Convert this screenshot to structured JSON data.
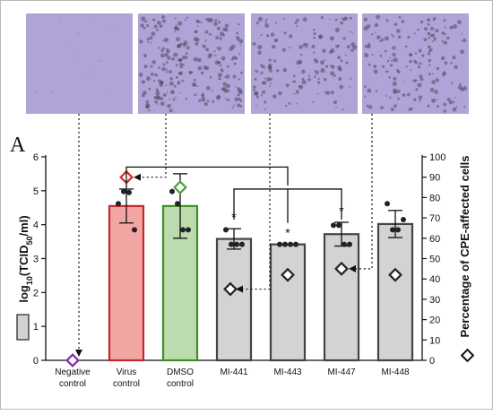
{
  "panel_letter": "A",
  "chart_data": {
    "type": "bar",
    "categories": [
      "Negative\ncontrol",
      "Virus\ncontrol",
      "DMSO\ncontrol",
      "MI-441",
      "MI-443",
      "MI-447",
      "MI-448"
    ],
    "ylabel": "log10(TCID50/ml)",
    "ylabel_parts": {
      "base": "log",
      "sub1": "10",
      "mid": "(TCID",
      "sub2": "50",
      "tail": "/ml)"
    },
    "y2label": "Percentage of CPE-affected cells",
    "ylim": [
      0,
      6
    ],
    "y2lim": [
      0,
      100
    ],
    "yticks": [
      0,
      1,
      2,
      3,
      4,
      5,
      6
    ],
    "y2ticks": [
      0,
      10,
      20,
      30,
      40,
      50,
      60,
      70,
      80,
      90,
      100
    ],
    "bar_values": [
      0,
      4.55,
      4.55,
      3.58,
      3.42,
      3.72,
      4.02
    ],
    "error": [
      0,
      0.5,
      0.95,
      0.3,
      0.0,
      0.35,
      0.4
    ],
    "replicates": [
      [],
      [
        4.62,
        4.98,
        4.95,
        3.85
      ],
      [
        4.98,
        4.62,
        3.85,
        3.85
      ],
      [
        3.85,
        3.42,
        3.42,
        3.42
      ],
      [
        3.42,
        3.42,
        3.42,
        3.42
      ],
      [
        3.98,
        3.98,
        3.42,
        3.42
      ],
      [
        4.62,
        3.85,
        3.85,
        4.15
      ]
    ],
    "cpe_percent": [
      0,
      90,
      85,
      35,
      42,
      45,
      42
    ],
    "significance": [
      "",
      "",
      "",
      "*",
      "*",
      "*",
      ""
    ],
    "colors": {
      "bar_fill": [
        "#d3d3d3",
        "#f2a6a4",
        "#bcdcae",
        "#d3d3d3",
        "#d3d3d3",
        "#d3d3d3",
        "#d3d3d3"
      ],
      "bar_edge": [
        "#444444",
        "#c0282a",
        "#3f8f24",
        "#444444",
        "#444444",
        "#444444",
        "#444444"
      ],
      "marker_edge": [
        "#7b2aa8",
        "#d62a24",
        "#46a335",
        "#222222",
        "#222222",
        "#222222",
        "#222222"
      ],
      "legend_swatch": "#d3d3d3",
      "micrograph": "#b0a3d8"
    }
  },
  "micrographs": [
    {
      "name": "negative-control"
    },
    {
      "name": "virus-control"
    },
    {
      "name": "mi-441"
    },
    {
      "name": "mi-447"
    }
  ]
}
